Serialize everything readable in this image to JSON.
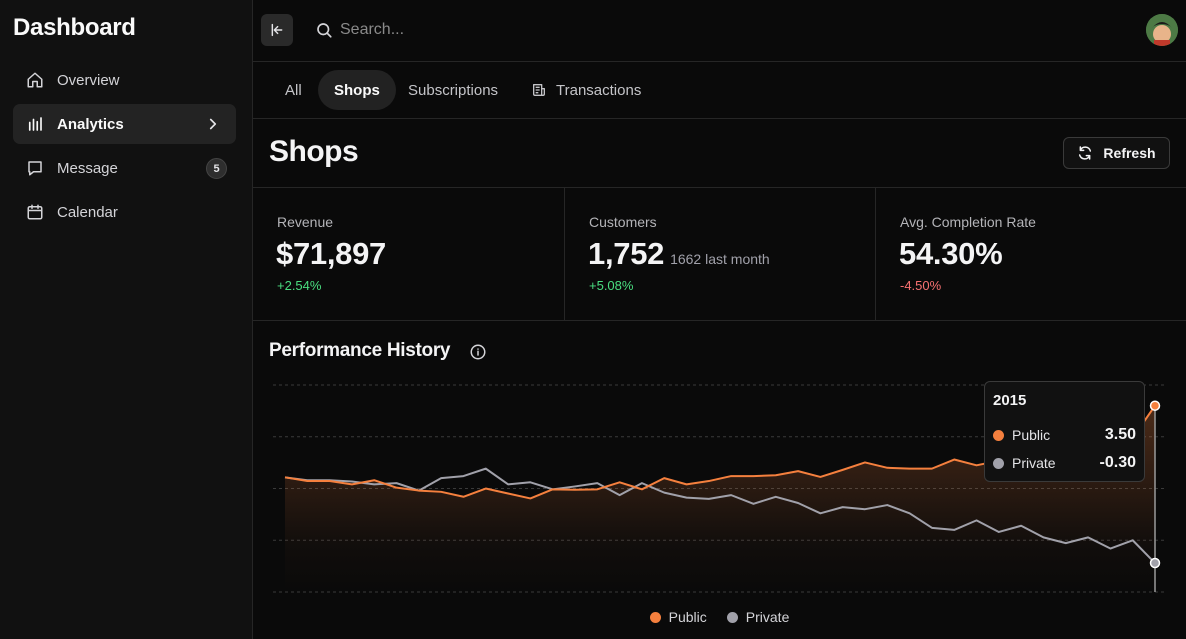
{
  "sidebar": {
    "brand": "Dashboard",
    "items": [
      {
        "label": "Overview",
        "icon": "home-icon"
      },
      {
        "label": "Analytics",
        "icon": "bar-chart-icon",
        "active": true
      },
      {
        "label": "Message",
        "icon": "message-icon",
        "badge": "5"
      },
      {
        "label": "Calendar",
        "icon": "calendar-icon"
      }
    ]
  },
  "topbar": {
    "search_placeholder": "Search...",
    "avatar": "user-avatar"
  },
  "tabs": [
    {
      "label": "All"
    },
    {
      "label": "Shops",
      "active": true
    },
    {
      "label": "Subscriptions"
    },
    {
      "label": "Transactions",
      "icon": "receipt-icon"
    }
  ],
  "page": {
    "title": "Shops",
    "refresh_label": "Refresh"
  },
  "stats": [
    {
      "label": "Revenue",
      "value": "$71,897",
      "sub": "",
      "delta": "+2.54%",
      "trend": "up"
    },
    {
      "label": "Customers",
      "value": "1,752",
      "sub": "1662 last month",
      "delta": "+5.08%",
      "trend": "up"
    },
    {
      "label": "Avg. Completion Rate",
      "value": "54.30%",
      "sub": "",
      "delta": "-4.50%",
      "trend": "down"
    }
  ],
  "performance": {
    "title": "Performance History",
    "tooltip": {
      "title": "2015",
      "rows": [
        {
          "name": "Public",
          "value": "3.50"
        },
        {
          "name": "Private",
          "value": "-0.30"
        }
      ]
    }
  },
  "colors": {
    "public": "#f5803e",
    "private": "#a1a1aa",
    "positive": "#4ade80",
    "negative": "#f87171"
  },
  "chart_data": {
    "type": "area",
    "y_range": [
      -1,
      4
    ],
    "grid": true,
    "legend_position": "bottom",
    "series": [
      {
        "name": "Public",
        "values": [
          1.77,
          1.68,
          1.68,
          1.6,
          1.7,
          1.52,
          1.45,
          1.42,
          1.3,
          1.5,
          1.38,
          1.26,
          1.48,
          1.47,
          1.48,
          1.65,
          1.48,
          1.75,
          1.6,
          1.68,
          1.8,
          1.8,
          1.82,
          1.92,
          1.78,
          1.95,
          2.13,
          2.0,
          1.98,
          1.98,
          2.2,
          2.06,
          2.17,
          2.43,
          2.25,
          2.55,
          2.55,
          2.72,
          2.72,
          3.5
        ]
      },
      {
        "name": "Private",
        "values": [
          1.77,
          1.7,
          1.7,
          1.67,
          1.6,
          1.63,
          1.45,
          1.75,
          1.8,
          1.98,
          1.6,
          1.65,
          1.48,
          1.55,
          1.63,
          1.34,
          1.63,
          1.4,
          1.28,
          1.25,
          1.34,
          1.13,
          1.3,
          1.15,
          0.9,
          1.05,
          1.0,
          1.1,
          0.9,
          0.55,
          0.5,
          0.73,
          0.45,
          0.6,
          0.32,
          0.18,
          0.32,
          0.05,
          0.25,
          -0.3
        ]
      }
    ]
  }
}
